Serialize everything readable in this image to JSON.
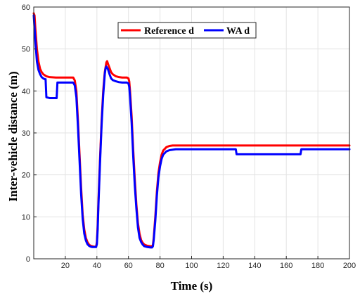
{
  "chart_data": {
    "type": "line",
    "title": "",
    "xlabel": "Time (s)",
    "ylabel": "Inter-vehicle distance (m)",
    "xlim": [
      0,
      200
    ],
    "ylim": [
      0,
      60
    ],
    "xticks": [
      20,
      40,
      60,
      80,
      100,
      120,
      140,
      160,
      180,
      200
    ],
    "yticks": [
      0,
      10,
      20,
      30,
      40,
      50,
      60
    ],
    "grid": true,
    "legend": "top-center",
    "series": [
      {
        "name": "Reference d",
        "color": "#ff0000",
        "x": [
          0,
          0.5,
          1,
          2,
          3,
          4,
          5,
          6,
          8,
          10,
          14,
          18,
          20,
          22,
          24,
          25,
          26,
          27,
          28,
          29,
          30,
          31,
          32,
          33,
          34,
          35,
          36,
          37,
          38,
          39,
          39.5,
          40,
          40.5,
          41,
          42,
          43,
          44,
          45,
          46,
          46.5,
          47,
          48,
          49,
          50,
          52,
          54,
          56,
          58,
          59,
          60,
          60.5,
          61,
          62,
          63,
          64,
          65,
          66,
          67,
          68,
          69,
          70,
          72,
          74,
          75,
          75.5,
          76,
          77,
          78,
          79,
          80,
          81,
          82,
          84,
          86,
          88,
          90,
          95,
          100,
          110,
          120,
          130,
          140,
          150,
          160,
          170,
          180,
          190,
          200
        ],
        "y": [
          58.5,
          58,
          55,
          50,
          47,
          45.3,
          44.5,
          44,
          43.5,
          43.3,
          43.2,
          43.2,
          43.2,
          43.2,
          43.2,
          43.2,
          42.5,
          40,
          33,
          25,
          17,
          10.5,
          7,
          5,
          4,
          3.4,
          3.1,
          3,
          2.9,
          2.9,
          2.9,
          4,
          8,
          14,
          24,
          33,
          40,
          44.5,
          46.8,
          47.1,
          46.5,
          45.5,
          44.5,
          44,
          43.5,
          43.3,
          43.2,
          43.2,
          43.2,
          43,
          42.3,
          40,
          34,
          26,
          19,
          13,
          8.5,
          6,
          4.5,
          3.8,
          3.4,
          3.1,
          3.0,
          3.0,
          3.3,
          5,
          10,
          16,
          20.5,
          23,
          24.8,
          25.8,
          26.6,
          26.9,
          27.0,
          27.0,
          27.0,
          27.0,
          27.0,
          27.0,
          27.0,
          27.0,
          27.0,
          27.0,
          27.0,
          27.0,
          27.0,
          27.0
        ]
      },
      {
        "name": "WA d",
        "color": "#0000ff",
        "x": [
          0,
          0.5,
          1,
          2,
          3,
          4,
          5,
          6,
          7,
          7.5,
          8,
          10,
          12,
          14,
          14.5,
          15,
          18,
          20,
          22,
          24,
          25,
          26,
          27,
          28,
          29,
          30,
          31,
          32,
          33,
          34,
          35,
          36,
          37,
          38,
          39,
          39.5,
          40,
          40.5,
          41,
          42,
          43,
          44,
          45,
          45.5,
          46,
          47,
          48,
          49,
          50,
          52,
          54,
          56,
          58,
          59,
          60,
          60.5,
          61,
          62,
          63,
          64,
          65,
          66,
          67,
          68,
          69,
          70,
          72,
          74,
          75,
          75.5,
          76,
          77,
          78,
          79,
          80,
          81,
          82,
          84,
          86,
          88,
          90,
          95,
          100,
          110,
          120,
          128,
          128.5,
          140,
          150,
          160,
          169,
          169.5,
          180,
          190,
          200
        ],
        "y": [
          58,
          55,
          52,
          47,
          45,
          44,
          43.3,
          43,
          42.8,
          42.8,
          38.5,
          38.3,
          38.3,
          38.3,
          38.3,
          42,
          42,
          42,
          42,
          42,
          42,
          41.3,
          38.5,
          31.5,
          23.5,
          15.5,
          9.5,
          6,
          4.4,
          3.5,
          3.1,
          2.9,
          2.8,
          2.8,
          2.8,
          2.8,
          3.5,
          7,
          13,
          23,
          32,
          39,
          44,
          45.4,
          45.8,
          45.2,
          44,
          43,
          42.6,
          42.3,
          42.1,
          42.0,
          42.0,
          42.0,
          41.8,
          41,
          38.5,
          32.5,
          24.5,
          17.5,
          12,
          7.5,
          5,
          4,
          3.4,
          3.0,
          2.8,
          2.7,
          2.7,
          3.0,
          4.5,
          9,
          15,
          19.5,
          22,
          23.8,
          24.8,
          25.6,
          25.9,
          26.0,
          26.1,
          26.1,
          26.1,
          26.1,
          26.1,
          26.1,
          24.9,
          24.9,
          24.9,
          24.9,
          24.9,
          26.1,
          26.1,
          26.1,
          26.1
        ]
      }
    ]
  }
}
